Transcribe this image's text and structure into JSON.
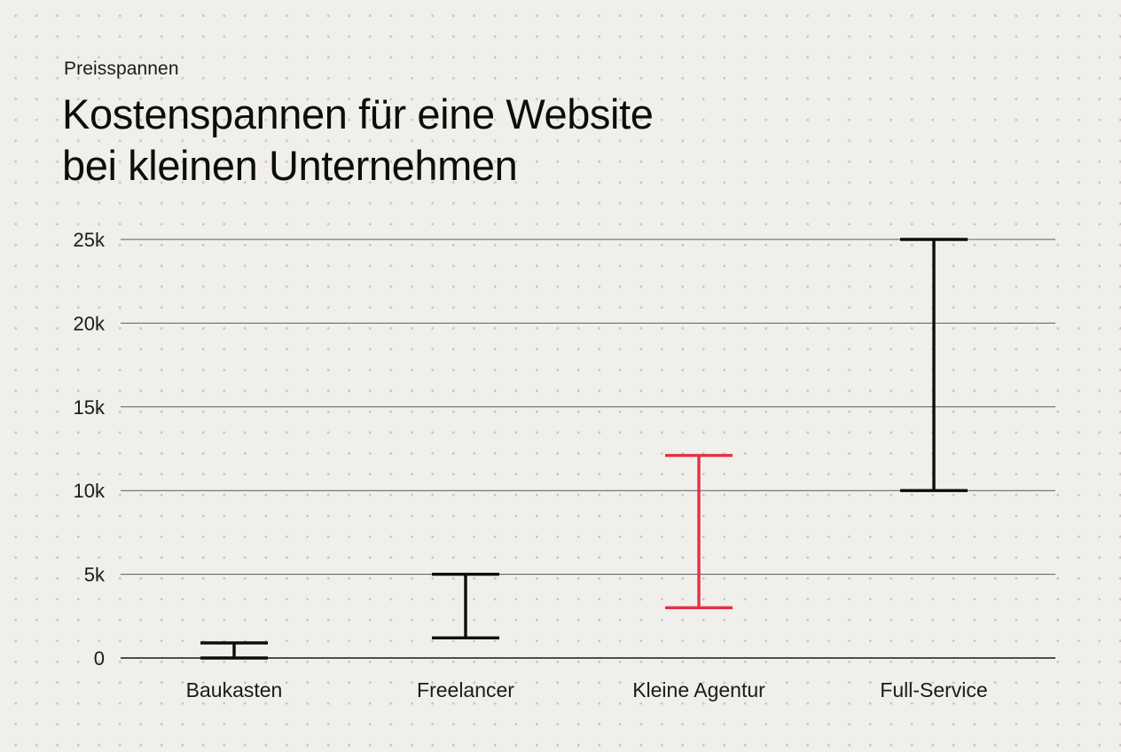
{
  "header": {
    "eyebrow": "Preisspannen",
    "title_line1": "Kostenspannen für eine Website",
    "title_line2": "bei kleinen Unternehmen"
  },
  "colors": {
    "background": "#f1efeb",
    "range_default": "#0d0d0d",
    "range_highlight": "#e23245",
    "gridline": "#5a5a5a"
  },
  "chart_data": {
    "type": "range",
    "title": "Kostenspannen für eine Website bei kleinen Unternehmen",
    "subtitle": "Preisspannen",
    "categories": [
      "Baukasten",
      "Freelancer",
      "Kleine Agentur",
      "Full-Service"
    ],
    "ranges": [
      {
        "low": 0,
        "high": 900,
        "highlight": false
      },
      {
        "low": 1200,
        "high": 5000,
        "highlight": false
      },
      {
        "low": 3000,
        "high": 12100,
        "highlight": true
      },
      {
        "low": 10000,
        "high": 25000,
        "highlight": false
      }
    ],
    "ylim": [
      0,
      25000
    ],
    "yticks": [
      0,
      5000,
      10000,
      15000,
      20000,
      25000
    ],
    "ytick_labels": [
      "0",
      "5k",
      "10k",
      "15k",
      "20k",
      "25k"
    ],
    "grid": true,
    "legend": "none"
  }
}
